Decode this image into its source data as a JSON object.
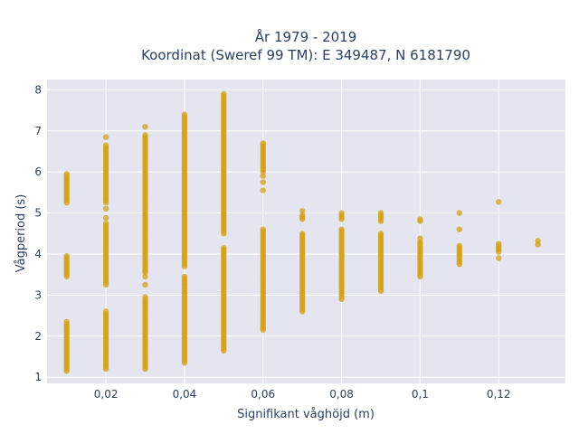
{
  "chart_data": {
    "type": "scatter",
    "title_line1": "År 1979 - 2019",
    "title_line2": "Koordinat (Sweref 99 TM): E 349487, N 6181790",
    "xlabel": "Signifikant våghöjd (m)",
    "ylabel": "Vågperiod (s)",
    "xlim": [
      0.005,
      0.137
    ],
    "ylim": [
      0.85,
      8.25
    ],
    "x_ticks": [
      {
        "value": 0.02,
        "label": "0,02"
      },
      {
        "value": 0.04,
        "label": "0,04"
      },
      {
        "value": 0.06,
        "label": "0,06"
      },
      {
        "value": 0.08,
        "label": "0,08"
      },
      {
        "value": 0.1,
        "label": "0,1"
      },
      {
        "value": 0.12,
        "label": "0,12"
      }
    ],
    "y_ticks": [
      {
        "value": 1,
        "label": "1"
      },
      {
        "value": 2,
        "label": "2"
      },
      {
        "value": 3,
        "label": "3"
      },
      {
        "value": 4,
        "label": "4"
      },
      {
        "value": 5,
        "label": "5"
      },
      {
        "value": 6,
        "label": "6"
      },
      {
        "value": 7,
        "label": "7"
      },
      {
        "value": 8,
        "label": "8"
      }
    ],
    "grid": true,
    "marker_color": "#d4a017",
    "plot_bg": "#e5e5f0",
    "columns": [
      {
        "x": 0.01,
        "ranges": [
          [
            1.15,
            1.85
          ],
          [
            1.9,
            2.35
          ],
          [
            3.45,
            3.95
          ],
          [
            5.25,
            5.95
          ]
        ],
        "points": []
      },
      {
        "x": 0.02,
        "ranges": [
          [
            1.2,
            2.6
          ],
          [
            3.25,
            4.75
          ],
          [
            5.25,
            6.65
          ]
        ],
        "points": [
          4.88,
          5.1,
          6.85
        ]
      },
      {
        "x": 0.03,
        "ranges": [
          [
            1.2,
            2.95
          ],
          [
            3.55,
            5.15
          ],
          [
            5.2,
            6.9
          ]
        ],
        "points": [
          3.25,
          3.45,
          7.1
        ]
      },
      {
        "x": 0.04,
        "ranges": [
          [
            1.35,
            3.45
          ],
          [
            3.7,
            7.4
          ]
        ],
        "points": []
      },
      {
        "x": 0.05,
        "ranges": [
          [
            1.65,
            4.15
          ],
          [
            4.5,
            7.9
          ]
        ],
        "points": []
      },
      {
        "x": 0.06,
        "ranges": [
          [
            2.15,
            4.6
          ],
          [
            6.0,
            6.7
          ]
        ],
        "points": [
          5.55,
          5.75,
          5.9
        ]
      },
      {
        "x": 0.07,
        "ranges": [
          [
            2.6,
            4.5
          ],
          [
            4.85,
            4.95
          ]
        ],
        "points": [
          5.05
        ]
      },
      {
        "x": 0.08,
        "ranges": [
          [
            2.9,
            4.6
          ],
          [
            4.85,
            4.95
          ]
        ],
        "points": [
          5.0
        ]
      },
      {
        "x": 0.09,
        "ranges": [
          [
            3.1,
            4.5
          ],
          [
            4.8,
            4.95
          ]
        ],
        "points": [
          5.0
        ]
      },
      {
        "x": 0.1,
        "ranges": [
          [
            3.45,
            4.3
          ],
          [
            4.8,
            4.85
          ]
        ],
        "points": [
          4.38
        ]
      },
      {
        "x": 0.11,
        "ranges": [
          [
            3.75,
            4.2
          ]
        ],
        "points": [
          4.6,
          5.0
        ]
      },
      {
        "x": 0.12,
        "ranges": [
          [
            4.05,
            4.25
          ]
        ],
        "points": [
          3.9,
          5.27
        ]
      },
      {
        "x": 0.13,
        "ranges": [],
        "points": [
          4.23,
          4.32
        ]
      }
    ]
  }
}
